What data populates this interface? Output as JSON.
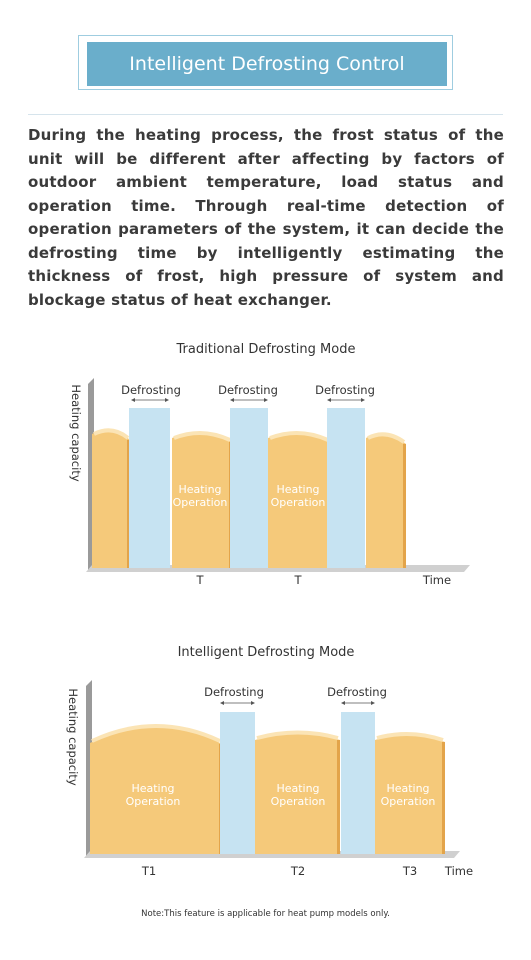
{
  "header": {
    "title": "Intelligent Defrosting Control"
  },
  "description": "During the heating process, the frost status of the unit will be different after affecting by factors of outdoor ambient temperature, load status and operation time. Through real-time detection of operation parameters of the system, it can decide the defrosting time by intelligently estimating the thickness of frost, high pressure of system and blockage status of heat exchanger.",
  "traditional": {
    "title": "Traditional Defrosting Mode",
    "y_label": "Heating capacity",
    "defrost_labels": [
      "Defrosting",
      "Defrosting",
      "Defrosting"
    ],
    "heating_labels": [
      "Heating Operation",
      "Heating Operation"
    ],
    "x_labels": [
      "T",
      "T"
    ],
    "x_axis_label": "Time"
  },
  "intelligent": {
    "title": "Intelligent Defrosting Mode",
    "y_label": "Heating capacity",
    "defrost_labels": [
      "Defrosting",
      "Defrosting"
    ],
    "heating_labels": [
      "Heating Operation",
      "Heating Operation",
      "Heating Operation"
    ],
    "x_labels": [
      "T1",
      "T2",
      "T3"
    ],
    "x_axis_label": "Time"
  },
  "note": "Note:This feature is applicable for heat pump models only."
}
